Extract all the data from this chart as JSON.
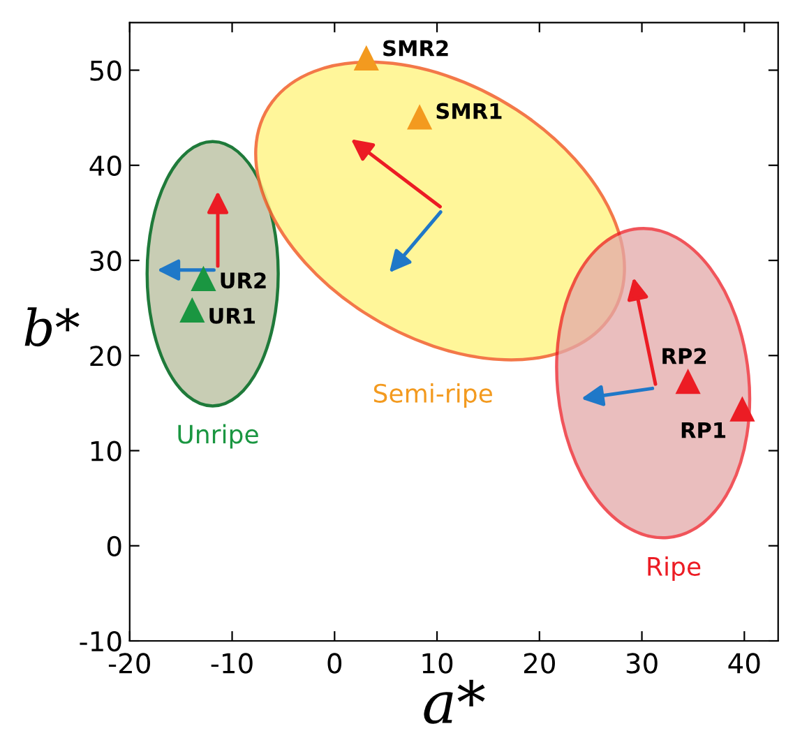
{
  "chart_data": {
    "type": "scatter",
    "xlabel": "a*",
    "ylabel": "b*",
    "series": [
      {
        "name": "Unripe",
        "color": "#1a9641",
        "x": [
          -13.9,
          -12.8
        ],
        "values": [
          24.8,
          28.1
        ]
      },
      {
        "name": "Semi-ripe",
        "color": "#f39a1f",
        "x": [
          8.3,
          3.1
        ],
        "values": [
          45.1,
          51.3
        ]
      },
      {
        "name": "Ripe",
        "color": "#ec1c24",
        "x": [
          39.8,
          34.5
        ],
        "values": [
          14.4,
          17.3
        ]
      }
    ],
    "annotations": [
      {
        "text": "UR1",
        "x": -13.9,
        "y": 24.8
      },
      {
        "text": "UR2",
        "x": -12.8,
        "y": 28.1
      },
      {
        "text": "SMR1",
        "x": 8.3,
        "y": 45.1
      },
      {
        "text": "SMR2",
        "x": 3.1,
        "y": 51.3
      },
      {
        "text": "RP1",
        "x": 39.8,
        "y": 14.4
      },
      {
        "text": "RP2",
        "x": 34.5,
        "y": 17.3
      }
    ],
    "marker": "triangle",
    "xlim": [
      -20,
      43.3
    ],
    "ylim": [
      -10,
      55
    ],
    "xticks": [
      -20,
      -10,
      0,
      10,
      20,
      30,
      40
    ],
    "yticks": [
      -10,
      0,
      10,
      20,
      30,
      40,
      50
    ],
    "grid": false,
    "legend": false
  }
}
